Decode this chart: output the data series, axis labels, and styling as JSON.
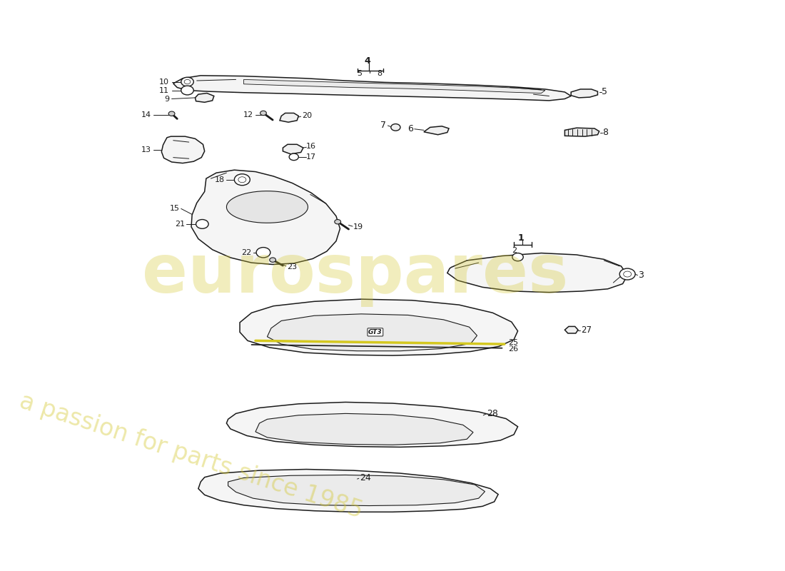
{
  "bg_color": "#ffffff",
  "line_color": "#1a1a1a",
  "watermark_text1": "eurospares",
  "watermark_text2": "a passion for parts since 1985",
  "watermark_color": "#d4c832",
  "fig_width": 11.0,
  "fig_height": 8.0,
  "dpi": 100
}
